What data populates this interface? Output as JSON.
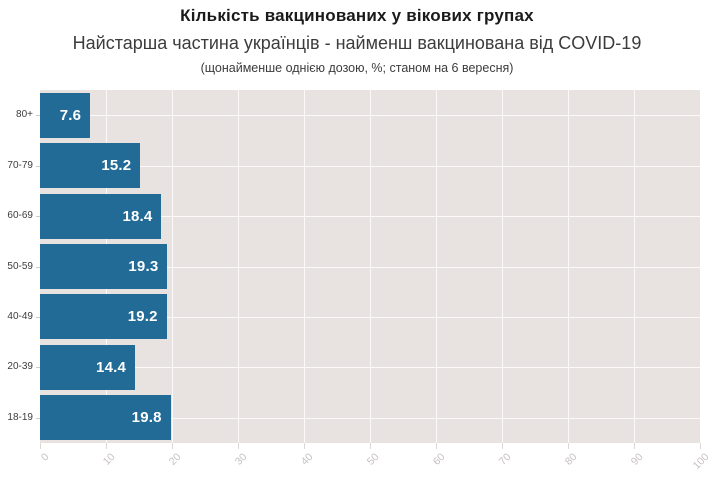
{
  "chart_data": {
    "type": "bar",
    "orientation": "horizontal",
    "title": "Кількість вакцинованих у вікових групах",
    "subtitle": "Найстарша частина українців - найменш вакцинована від COVID-19",
    "caption": "(щонайменше однією дозою, %; станом на 6 вересня)",
    "categories": [
      "80+",
      "70-79",
      "60-69",
      "50-59",
      "40-49",
      "20-39",
      "18-19"
    ],
    "values": [
      7.6,
      15.2,
      18.4,
      19.3,
      19.2,
      14.4,
      19.8
    ],
    "xlabel": "",
    "ylabel": "",
    "xlim": [
      0,
      100
    ],
    "xticks": [
      0,
      10,
      20,
      30,
      40,
      50,
      60,
      70,
      80,
      90,
      100
    ],
    "grid": true,
    "legend": "none",
    "colors": {
      "bar": "#216b96",
      "plot_background": "#e8e2e1",
      "gridline": "#fbf9f9",
      "value_label": "#ffffff",
      "x_tick_label": "#c7c1c0",
      "y_tick_label": "#3c3c3c",
      "title": "#1a1a1a",
      "subtitle": "#3c3c3c"
    }
  }
}
